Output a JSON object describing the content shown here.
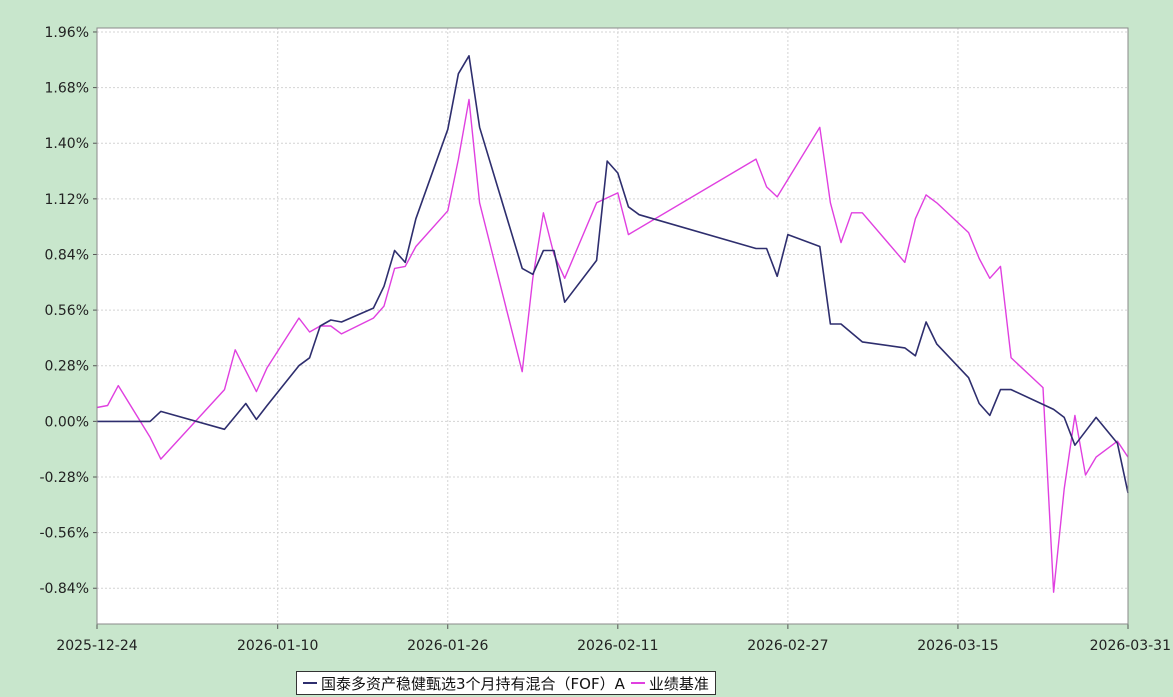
{
  "chart_data": {
    "type": "line",
    "title": "",
    "xlabel": "",
    "ylabel": "",
    "x_tick_labels": [
      "2025-12-24",
      "2026-01-10",
      "2026-01-26",
      "2026-02-11",
      "2026-02-27",
      "2026-03-15",
      "2026-03-31"
    ],
    "x_ticks": [
      "2025-12-24",
      "2026-01-10",
      "2026-01-26",
      "2026-02-11",
      "2026-02-27",
      "2026-03-15",
      "2026-03-31"
    ],
    "y_tick_labels": [
      "1.96%",
      "1.68%",
      "1.40%",
      "1.12%",
      "0.84%",
      "0.56%",
      "0.28%",
      "0.00%",
      "-0.28%",
      "-0.56%",
      "-0.84%"
    ],
    "y_ticks": [
      1.96,
      1.68,
      1.4,
      1.12,
      0.84,
      0.56,
      0.28,
      0.0,
      -0.28,
      -0.56,
      -0.84
    ],
    "ylim": [
      -1.02,
      1.98
    ],
    "xlim": [
      "2025-12-24",
      "2026-03-31"
    ],
    "grid": true,
    "legend_position": "bottom",
    "series": [
      {
        "name": "国泰多资产稳健甄选3个月持有混合（FOF）A",
        "color": "#2e2e6e",
        "points": [
          [
            "2025-12-24",
            0.0
          ],
          [
            "2025-12-29",
            0.0
          ],
          [
            "2025-12-30",
            0.05
          ],
          [
            "2026-01-05",
            -0.04
          ],
          [
            "2026-01-07",
            0.09
          ],
          [
            "2026-01-08",
            0.01
          ],
          [
            "2026-01-09",
            0.08
          ],
          [
            "2026-01-12",
            0.28
          ],
          [
            "2026-01-13",
            0.32
          ],
          [
            "2026-01-14",
            0.48
          ],
          [
            "2026-01-15",
            0.51
          ],
          [
            "2026-01-16",
            0.5
          ],
          [
            "2026-01-19",
            0.57
          ],
          [
            "2026-01-20",
            0.68
          ],
          [
            "2026-01-21",
            0.86
          ],
          [
            "2026-01-22",
            0.8
          ],
          [
            "2026-01-23",
            1.02
          ],
          [
            "2026-01-26",
            1.47
          ],
          [
            "2026-01-27",
            1.75
          ],
          [
            "2026-01-28",
            1.84
          ],
          [
            "2026-01-29",
            1.48
          ],
          [
            "2026-02-02",
            0.77
          ],
          [
            "2026-02-03",
            0.74
          ],
          [
            "2026-02-04",
            0.86
          ],
          [
            "2026-02-05",
            0.86
          ],
          [
            "2026-02-06",
            0.6
          ],
          [
            "2026-02-09",
            0.81
          ],
          [
            "2026-02-10",
            1.31
          ],
          [
            "2026-02-11",
            1.25
          ],
          [
            "2026-02-12",
            1.08
          ],
          [
            "2026-02-13",
            1.04
          ],
          [
            "2026-02-24",
            0.87
          ],
          [
            "2026-02-25",
            0.87
          ],
          [
            "2026-02-26",
            0.73
          ],
          [
            "2026-02-27",
            0.94
          ],
          [
            "2026-03-02",
            0.88
          ],
          [
            "2026-03-03",
            0.49
          ],
          [
            "2026-03-04",
            0.49
          ],
          [
            "2026-03-06",
            0.4
          ],
          [
            "2026-03-10",
            0.37
          ],
          [
            "2026-03-11",
            0.33
          ],
          [
            "2026-03-12",
            0.5
          ],
          [
            "2026-03-13",
            0.39
          ],
          [
            "2026-03-16",
            0.22
          ],
          [
            "2026-03-17",
            0.09
          ],
          [
            "2026-03-18",
            0.03
          ],
          [
            "2026-03-19",
            0.16
          ],
          [
            "2026-03-20",
            0.16
          ],
          [
            "2026-03-24",
            0.06
          ],
          [
            "2026-03-25",
            0.02
          ],
          [
            "2026-03-26",
            -0.12
          ],
          [
            "2026-03-27",
            -0.05
          ],
          [
            "2026-03-28",
            0.02
          ],
          [
            "2026-03-30",
            -0.11
          ],
          [
            "2026-03-31",
            -0.36
          ]
        ]
      },
      {
        "name": "业绩基准",
        "color": "#e040e0",
        "points": [
          [
            "2025-12-24",
            0.07
          ],
          [
            "2025-12-25",
            0.08
          ],
          [
            "2025-12-26",
            0.18
          ],
          [
            "2025-12-29",
            -0.08
          ],
          [
            "2025-12-30",
            -0.19
          ],
          [
            "2026-01-05",
            0.16
          ],
          [
            "2026-01-06",
            0.36
          ],
          [
            "2026-01-08",
            0.15
          ],
          [
            "2026-01-09",
            0.27
          ],
          [
            "2026-01-12",
            0.52
          ],
          [
            "2026-01-13",
            0.45
          ],
          [
            "2026-01-14",
            0.48
          ],
          [
            "2026-01-15",
            0.48
          ],
          [
            "2026-01-16",
            0.44
          ],
          [
            "2026-01-19",
            0.52
          ],
          [
            "2026-01-20",
            0.58
          ],
          [
            "2026-01-21",
            0.77
          ],
          [
            "2026-01-22",
            0.78
          ],
          [
            "2026-01-23",
            0.88
          ],
          [
            "2026-01-26",
            1.06
          ],
          [
            "2026-01-27",
            1.32
          ],
          [
            "2026-01-28",
            1.62
          ],
          [
            "2026-01-29",
            1.1
          ],
          [
            "2026-02-02",
            0.25
          ],
          [
            "2026-02-03",
            0.72
          ],
          [
            "2026-02-04",
            1.05
          ],
          [
            "2026-02-05",
            0.84
          ],
          [
            "2026-02-06",
            0.72
          ],
          [
            "2026-02-09",
            1.1
          ],
          [
            "2026-02-11",
            1.15
          ],
          [
            "2026-02-12",
            0.94
          ],
          [
            "2026-02-24",
            1.32
          ],
          [
            "2026-02-25",
            1.18
          ],
          [
            "2026-02-26",
            1.13
          ],
          [
            "2026-03-02",
            1.48
          ],
          [
            "2026-03-03",
            1.1
          ],
          [
            "2026-03-04",
            0.9
          ],
          [
            "2026-03-05",
            1.05
          ],
          [
            "2026-03-06",
            1.05
          ],
          [
            "2026-03-10",
            0.8
          ],
          [
            "2026-03-11",
            1.02
          ],
          [
            "2026-03-12",
            1.14
          ],
          [
            "2026-03-13",
            1.1
          ],
          [
            "2026-03-16",
            0.95
          ],
          [
            "2026-03-17",
            0.82
          ],
          [
            "2026-03-18",
            0.72
          ],
          [
            "2026-03-19",
            0.78
          ],
          [
            "2026-03-20",
            0.32
          ],
          [
            "2026-03-23",
            0.17
          ],
          [
            "2026-03-24",
            -0.86
          ],
          [
            "2026-03-25",
            -0.34
          ],
          [
            "2026-03-26",
            0.03
          ],
          [
            "2026-03-27",
            -0.27
          ],
          [
            "2026-03-28",
            -0.18
          ],
          [
            "2026-03-30",
            -0.1
          ],
          [
            "2026-03-31",
            -0.18
          ]
        ]
      }
    ]
  },
  "legend": {
    "series_1": "国泰多资产稳健甄选3个月持有混合（FOF）A",
    "series_2": "业绩基准"
  },
  "colors": {
    "background": "#c8e6cc",
    "plot_background": "#ffffff",
    "grid": "#d4d4d4",
    "series_1": "#2e2e6e",
    "series_2": "#e040e0"
  }
}
